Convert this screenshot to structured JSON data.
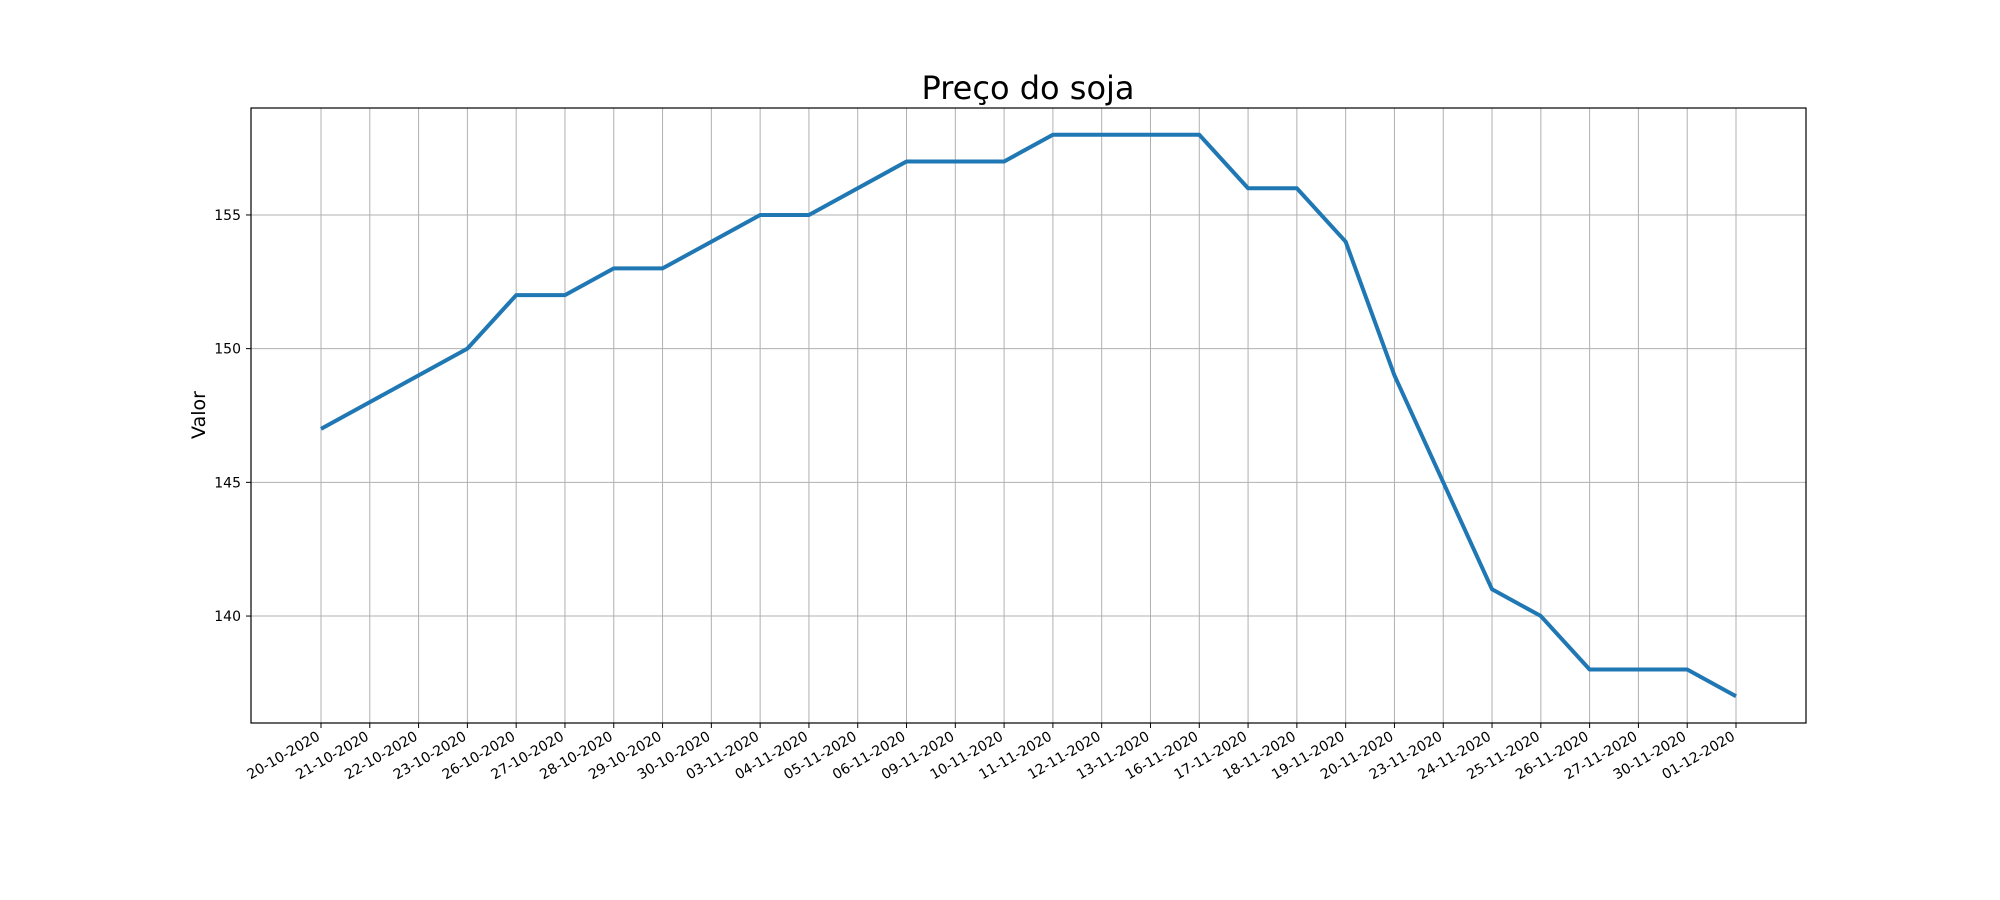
{
  "chart_data": {
    "type": "line",
    "title": "Preço do soja",
    "xlabel": "",
    "ylabel": "Valor",
    "grid": true,
    "x": [
      "20-10-2020",
      "21-10-2020",
      "22-10-2020",
      "23-10-2020",
      "26-10-2020",
      "27-10-2020",
      "28-10-2020",
      "29-10-2020",
      "30-10-2020",
      "03-11-2020",
      "04-11-2020",
      "05-11-2020",
      "06-11-2020",
      "09-11-2020",
      "10-11-2020",
      "11-11-2020",
      "12-11-2020",
      "13-11-2020",
      "16-11-2020",
      "17-11-2020",
      "18-11-2020",
      "19-11-2020",
      "20-11-2020",
      "23-11-2020",
      "24-11-2020",
      "25-11-2020",
      "26-11-2020",
      "27-11-2020",
      "30-11-2020",
      "01-12-2020"
    ],
    "series": [
      {
        "color": "#1f77b4",
        "values": [
          147,
          148,
          149,
          150,
          152,
          152,
          153,
          153,
          154,
          155,
          155,
          156,
          157,
          157,
          157,
          158,
          158,
          158,
          158,
          156,
          156,
          154,
          149,
          145,
          141,
          140,
          138,
          138,
          138,
          137
        ]
      }
    ],
    "yticks": [
      140,
      145,
      150,
      155
    ],
    "ylim": [
      136,
      159
    ]
  }
}
